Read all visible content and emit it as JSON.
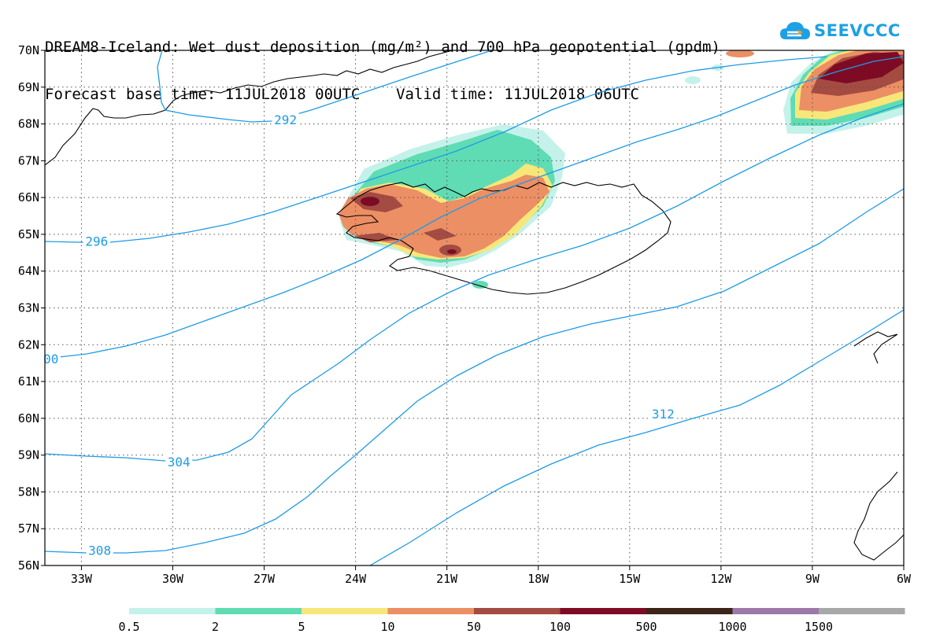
{
  "title": {
    "line1": "DREAM8-Iceland: Wet dust deposition (mg/m²) and 700 hPa geopotential (gpdm)",
    "line2": "Forecast base time: 11JUL2018 00UTC    Valid time: 11JUL2018 06UTC"
  },
  "logo": {
    "text": "SEEVCCC",
    "icon": "cloud-icon",
    "color": "#1da1e3"
  },
  "map": {
    "lon_range": [
      -34.2,
      -6
    ],
    "lat_range": [
      56,
      70
    ],
    "lon_ticks": [
      -33,
      -30,
      -27,
      -24,
      -21,
      -18,
      -15,
      -12,
      -9,
      -6
    ],
    "lon_labels": [
      "33W",
      "30W",
      "27W",
      "24W",
      "21W",
      "18W",
      "15W",
      "12W",
      "9W",
      "6W"
    ],
    "lat_ticks": [
      56,
      57,
      58,
      59,
      60,
      61,
      62,
      63,
      64,
      65,
      66,
      67,
      68,
      69,
      70
    ],
    "lat_labels": [
      "56N",
      "57N",
      "58N",
      "59N",
      "60N",
      "61N",
      "62N",
      "63N",
      "64N",
      "65N",
      "66N",
      "67N",
      "68N",
      "69N",
      "70N"
    ],
    "gridlines": "dotted",
    "contour_color": "#1e9be6",
    "contour_labels": [
      {
        "text": "292",
        "lon": -26.3,
        "lat": 68.1
      },
      {
        "text": "296",
        "lon": -32.5,
        "lat": 64.8
      },
      {
        "text": "00",
        "lon": -34.0,
        "lat": 61.6
      },
      {
        "text": "304",
        "lon": -29.8,
        "lat": 58.8
      },
      {
        "text": "308",
        "lon": -32.4,
        "lat": 56.4
      },
      {
        "text": "312",
        "lon": -13.9,
        "lat": 60.1
      }
    ]
  },
  "legend": {
    "colors": [
      "#c4f2ea",
      "#5fdcb4",
      "#f7e77a",
      "#ec8f64",
      "#a44b42",
      "#7e0b24",
      "#3c2418",
      "#9c79a9",
      "#a8a8a8"
    ],
    "labels": [
      "0.5",
      "2",
      "5",
      "10",
      "50",
      "100",
      "500",
      "1000",
      "1500"
    ]
  }
}
